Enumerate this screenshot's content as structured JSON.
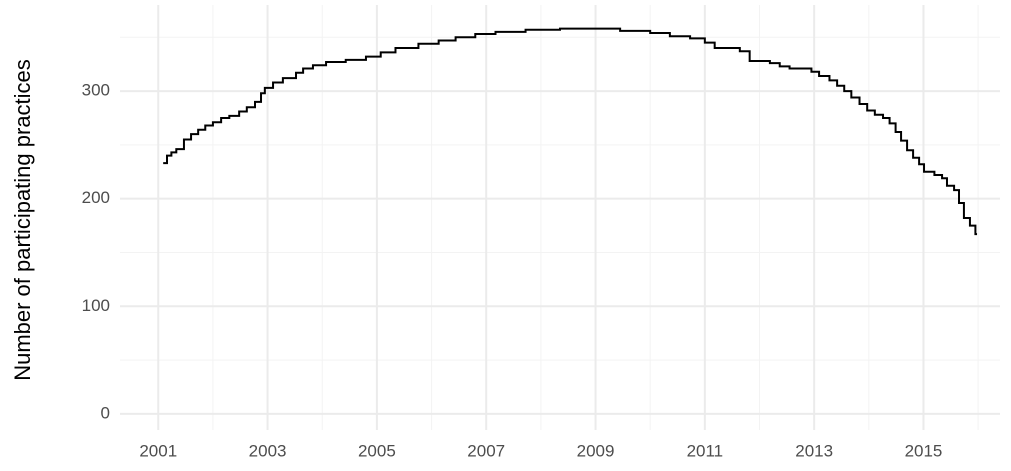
{
  "chart_data": {
    "type": "step",
    "ylabel": "Number of participating practices",
    "x": [
      2001.09,
      2001.16,
      2001.24,
      2001.33,
      2001.47,
      2001.6,
      2001.73,
      2001.86,
      2002.0,
      2002.15,
      2002.3,
      2002.48,
      2002.62,
      2002.77,
      2002.88,
      2002.95,
      2003.1,
      2003.28,
      2003.52,
      2003.65,
      2003.83,
      2004.07,
      2004.43,
      2004.8,
      2005.07,
      2005.34,
      2005.76,
      2006.13,
      2006.44,
      2006.8,
      2007.17,
      2007.72,
      2008.35,
      2009.45,
      2010.0,
      2010.36,
      2010.73,
      2011.0,
      2011.18,
      2011.64,
      2011.82,
      2012.19,
      2012.37,
      2012.55,
      2012.82,
      2012.95,
      2013.09,
      2013.28,
      2013.42,
      2013.55,
      2013.68,
      2013.83,
      2013.97,
      2014.11,
      2014.26,
      2014.38,
      2014.49,
      2014.59,
      2014.7,
      2014.81,
      2014.92,
      2015.01,
      2015.2,
      2015.34,
      2015.43,
      2015.56,
      2015.65,
      2015.74,
      2015.85,
      2015.95,
      2015.98
    ],
    "series": [
      {
        "color": "#000000",
        "values": [
          233,
          240,
          243,
          246,
          255,
          260,
          264,
          268,
          271,
          275,
          277,
          281,
          285,
          290,
          298,
          303,
          308,
          312,
          317,
          321,
          324,
          327,
          329,
          332,
          336,
          340,
          344,
          347,
          350,
          353,
          355,
          357,
          358,
          356,
          354,
          351,
          349,
          345,
          340,
          337,
          328,
          326,
          323,
          321,
          321,
          318,
          314,
          310,
          305,
          300,
          294,
          288,
          282,
          278,
          275,
          270,
          262,
          254,
          245,
          238,
          232,
          225,
          222,
          219,
          212,
          208,
          196,
          182,
          175,
          167,
          167
        ]
      }
    ],
    "xlim": [
      2000.3,
      2016.4
    ],
    "ylim": [
      -15,
      380
    ],
    "xticks": [
      2001,
      2003,
      2005,
      2007,
      2009,
      2011,
      2013,
      2015
    ],
    "yticks": [
      0,
      100,
      200,
      300
    ],
    "xticks_minor": [
      2002,
      2004,
      2006,
      2008,
      2010,
      2012,
      2014,
      2016
    ],
    "yticks_minor": [
      50,
      150,
      250,
      350
    ],
    "grid": true
  }
}
